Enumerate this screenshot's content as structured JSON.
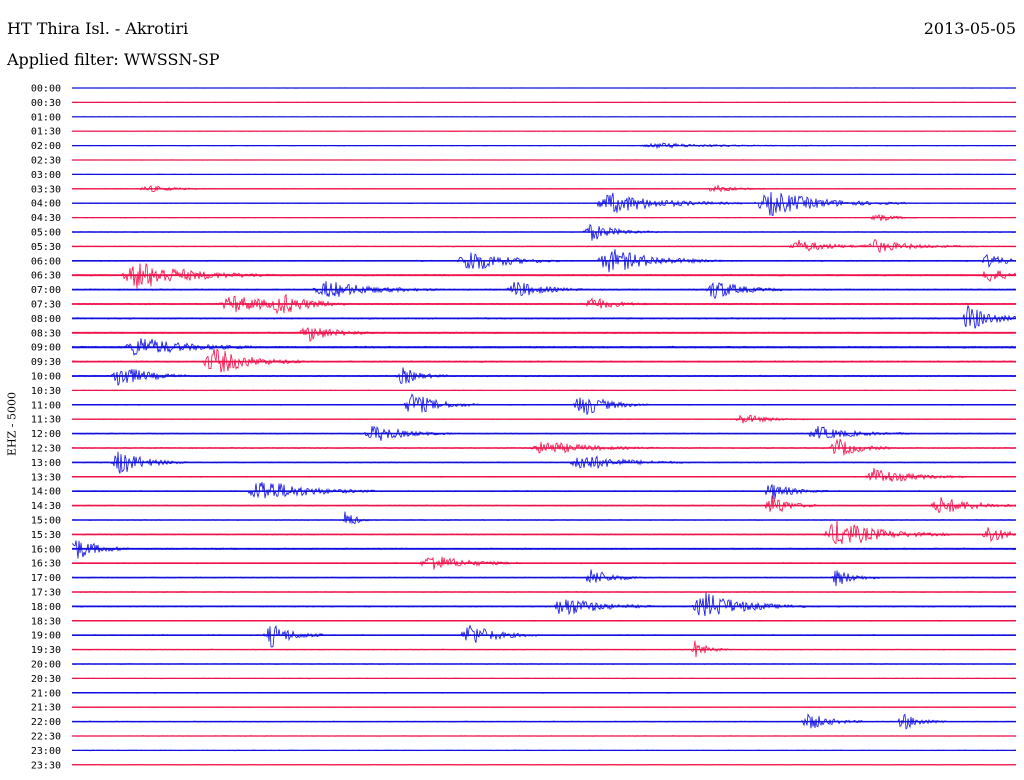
{
  "header": {
    "station": "HT Thira Isl. - Akrotiri",
    "date": "2013-05-05",
    "filter": "Applied filter: WWSSN-SP"
  },
  "chart_data": {
    "type": "line",
    "title": "HT Thira Isl. - Akrotiri",
    "date": "2013-05-05",
    "subtitle": "Applied filter: WWSSN-SP",
    "ylabel": "EHZ - 5000",
    "colors": [
      "#1010e0",
      "#f0104a"
    ],
    "grid": false,
    "rows": [
      {
        "time": "00:00",
        "activity": 0.1,
        "events": []
      },
      {
        "time": "00:30",
        "activity": 0.12,
        "events": []
      },
      {
        "time": "01:00",
        "activity": 0.1,
        "events": []
      },
      {
        "time": "01:30",
        "activity": 0.1,
        "events": []
      },
      {
        "time": "02:00",
        "activity": 0.12,
        "events": [
          [
            0.62,
            0.14,
            0.3
          ]
        ]
      },
      {
        "time": "02:30",
        "activity": 0.1,
        "events": []
      },
      {
        "time": "03:00",
        "activity": 0.12,
        "events": []
      },
      {
        "time": "03:30",
        "activity": 0.15,
        "events": [
          [
            0.08,
            0.06,
            0.4
          ],
          [
            0.68,
            0.06,
            0.4
          ]
        ]
      },
      {
        "time": "04:00",
        "activity": 0.2,
        "events": [
          [
            0.57,
            0.12,
            1.2
          ],
          [
            0.74,
            0.12,
            1.4
          ]
        ]
      },
      {
        "time": "04:30",
        "activity": 0.15,
        "events": [
          [
            0.85,
            0.04,
            0.6
          ]
        ]
      },
      {
        "time": "05:00",
        "activity": 0.2,
        "events": [
          [
            0.55,
            0.06,
            1.0
          ]
        ]
      },
      {
        "time": "05:30",
        "activity": 0.2,
        "events": [
          [
            0.77,
            0.08,
            0.7
          ],
          [
            0.85,
            0.09,
            0.7
          ]
        ]
      },
      {
        "time": "06:00",
        "activity": 0.3,
        "events": [
          [
            0.42,
            0.08,
            1.4
          ],
          [
            0.57,
            0.1,
            1.4
          ],
          [
            0.97,
            0.04,
            0.8
          ]
        ]
      },
      {
        "time": "06:30",
        "activity": 0.4,
        "events": [
          [
            0.07,
            0.12,
            1.6
          ],
          [
            0.97,
            0.04,
            1.0
          ]
        ]
      },
      {
        "time": "07:00",
        "activity": 0.4,
        "events": [
          [
            0.27,
            0.1,
            1.0
          ],
          [
            0.47,
            0.06,
            1.0
          ],
          [
            0.68,
            0.06,
            1.2
          ]
        ]
      },
      {
        "time": "07:30",
        "activity": 0.4,
        "events": [
          [
            0.17,
            0.1,
            1.0
          ],
          [
            0.22,
            0.06,
            1.0
          ],
          [
            0.55,
            0.05,
            0.8
          ]
        ]
      },
      {
        "time": "08:00",
        "activity": 0.4,
        "events": [
          [
            0.95,
            0.05,
            1.6
          ]
        ]
      },
      {
        "time": "08:30",
        "activity": 0.4,
        "events": [
          [
            0.25,
            0.06,
            1.0
          ]
        ]
      },
      {
        "time": "09:00",
        "activity": 0.5,
        "events": [
          [
            0.07,
            0.1,
            1.2
          ]
        ]
      },
      {
        "time": "09:30",
        "activity": 0.4,
        "events": [
          [
            0.15,
            0.08,
            1.6
          ]
        ]
      },
      {
        "time": "10:00",
        "activity": 0.4,
        "events": [
          [
            0.05,
            0.06,
            1.4
          ],
          [
            0.35,
            0.04,
            1.0
          ]
        ]
      },
      {
        "time": "10:30",
        "activity": 0.15,
        "events": []
      },
      {
        "time": "11:00",
        "activity": 0.25,
        "events": [
          [
            0.36,
            0.06,
            1.4
          ],
          [
            0.54,
            0.06,
            1.4
          ]
        ]
      },
      {
        "time": "11:30",
        "activity": 0.2,
        "events": [
          [
            0.71,
            0.06,
            0.6
          ]
        ]
      },
      {
        "time": "12:00",
        "activity": 0.3,
        "events": [
          [
            0.32,
            0.07,
            1.0
          ],
          [
            0.79,
            0.08,
            0.8
          ]
        ]
      },
      {
        "time": "12:30",
        "activity": 0.3,
        "events": [
          [
            0.5,
            0.1,
            0.8
          ],
          [
            0.81,
            0.05,
            1.2
          ]
        ]
      },
      {
        "time": "13:00",
        "activity": 0.3,
        "events": [
          [
            0.05,
            0.06,
            1.4
          ],
          [
            0.54,
            0.09,
            1.0
          ]
        ]
      },
      {
        "time": "13:30",
        "activity": 0.25,
        "events": [
          [
            0.85,
            0.08,
            1.0
          ]
        ]
      },
      {
        "time": "14:00",
        "activity": 0.3,
        "events": [
          [
            0.2,
            0.1,
            1.4
          ],
          [
            0.74,
            0.05,
            1.0
          ]
        ]
      },
      {
        "time": "14:30",
        "activity": 0.3,
        "events": [
          [
            0.74,
            0.04,
            1.4
          ],
          [
            0.92,
            0.08,
            1.0
          ]
        ]
      },
      {
        "time": "15:00",
        "activity": 0.2,
        "events": [
          [
            0.29,
            0.02,
            1.4
          ]
        ]
      },
      {
        "time": "15:30",
        "activity": 0.3,
        "events": [
          [
            0.81,
            0.1,
            1.6
          ],
          [
            0.97,
            0.04,
            1.2
          ]
        ]
      },
      {
        "time": "16:00",
        "activity": 0.4,
        "events": [
          [
            0.0,
            0.05,
            1.6
          ]
        ]
      },
      {
        "time": "16:30",
        "activity": 0.3,
        "events": [
          [
            0.38,
            0.08,
            1.0
          ]
        ]
      },
      {
        "time": "17:00",
        "activity": 0.3,
        "events": [
          [
            0.55,
            0.05,
            1.0
          ],
          [
            0.81,
            0.04,
            1.0
          ]
        ]
      },
      {
        "time": "17:30",
        "activity": 0.2,
        "events": []
      },
      {
        "time": "18:00",
        "activity": 0.35,
        "events": [
          [
            0.52,
            0.08,
            1.2
          ],
          [
            0.67,
            0.09,
            1.6
          ]
        ]
      },
      {
        "time": "18:30",
        "activity": 0.25,
        "events": []
      },
      {
        "time": "19:00",
        "activity": 0.3,
        "events": [
          [
            0.21,
            0.05,
            1.4
          ],
          [
            0.42,
            0.06,
            1.4
          ]
        ]
      },
      {
        "time": "19:30",
        "activity": 0.2,
        "events": [
          [
            0.66,
            0.03,
            1.0
          ]
        ]
      },
      {
        "time": "20:00",
        "activity": 0.2,
        "events": []
      },
      {
        "time": "20:30",
        "activity": 0.15,
        "events": []
      },
      {
        "time": "21:00",
        "activity": 0.25,
        "events": []
      },
      {
        "time": "21:30",
        "activity": 0.15,
        "events": []
      },
      {
        "time": "22:00",
        "activity": 0.25,
        "events": [
          [
            0.78,
            0.05,
            1.0
          ],
          [
            0.88,
            0.04,
            1.0
          ]
        ]
      },
      {
        "time": "22:30",
        "activity": 0.15,
        "events": []
      },
      {
        "time": "23:00",
        "activity": 0.15,
        "events": []
      },
      {
        "time": "23:30",
        "activity": 0.12,
        "events": []
      }
    ]
  }
}
